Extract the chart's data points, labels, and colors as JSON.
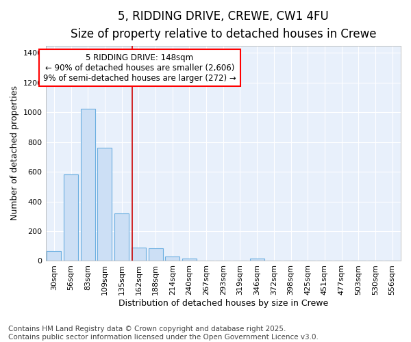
{
  "title1": "5, RIDDING DRIVE, CREWE, CW1 4FU",
  "title2": "Size of property relative to detached houses in Crewe",
  "xlabel": "Distribution of detached houses by size in Crewe",
  "ylabel": "Number of detached properties",
  "categories": [
    "30sqm",
    "56sqm",
    "83sqm",
    "109sqm",
    "135sqm",
    "162sqm",
    "188sqm",
    "214sqm",
    "240sqm",
    "267sqm",
    "293sqm",
    "319sqm",
    "346sqm",
    "372sqm",
    "398sqm",
    "425sqm",
    "451sqm",
    "477sqm",
    "503sqm",
    "530sqm",
    "556sqm"
  ],
  "values": [
    65,
    580,
    1025,
    760,
    320,
    90,
    85,
    30,
    15,
    0,
    0,
    0,
    15,
    0,
    0,
    0,
    0,
    0,
    0,
    0,
    0
  ],
  "bar_color": "#ccdff5",
  "bar_edge_color": "#6aaee0",
  "background_color": "#ffffff",
  "plot_bg_color": "#e8f0fb",
  "grid_color": "#ffffff",
  "red_line_x": 4.62,
  "annotation_text": "5 RIDDING DRIVE: 148sqm\n← 90% of detached houses are smaller (2,606)\n9% of semi-detached houses are larger (272) →",
  "ylim": [
    0,
    1450
  ],
  "yticks": [
    0,
    200,
    400,
    600,
    800,
    1000,
    1200,
    1400
  ],
  "footer_text": "Contains HM Land Registry data © Crown copyright and database right 2025.\nContains public sector information licensed under the Open Government Licence v3.0.",
  "title1_fontsize": 12,
  "title2_fontsize": 10,
  "xlabel_fontsize": 9,
  "ylabel_fontsize": 9,
  "tick_fontsize": 8,
  "annotation_fontsize": 8.5,
  "footer_fontsize": 7.5
}
